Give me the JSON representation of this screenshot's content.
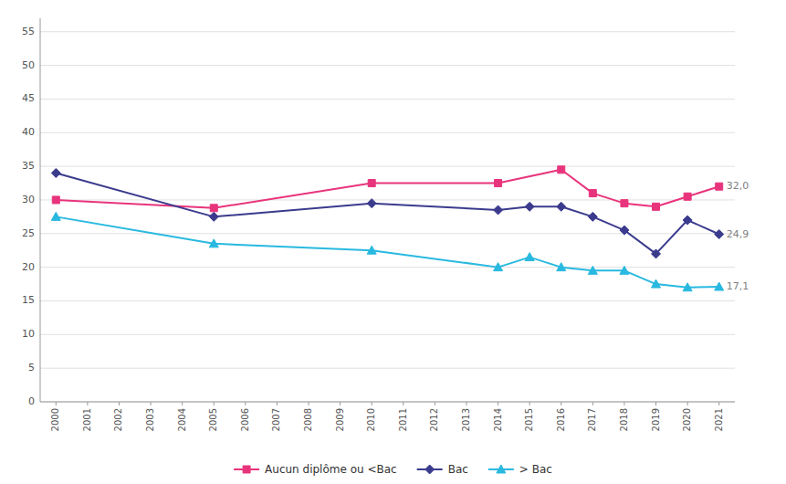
{
  "chart_data": {
    "type": "line",
    "series": [
      {
        "name": "Aucun diplôme ou <Bac",
        "color": "#e8347c",
        "marker": "square",
        "x": [
          2000,
          2005,
          2010,
          2014,
          2016,
          2017,
          2018,
          2019,
          2020,
          2021
        ],
        "values": [
          30.0,
          28.8,
          32.5,
          32.5,
          34.5,
          31.0,
          29.5,
          29.0,
          30.5,
          32.0
        ]
      },
      {
        "name": "Bac",
        "color": "#3b3b8e",
        "marker": "diamond",
        "x": [
          2000,
          2005,
          2010,
          2014,
          2015,
          2016,
          2017,
          2018,
          2019,
          2020,
          2021
        ],
        "values": [
          34.0,
          27.5,
          29.5,
          28.5,
          29.0,
          29.0,
          27.5,
          25.5,
          22.0,
          27.0,
          24.9
        ]
      },
      {
        "name": "> Bac",
        "color": "#29b9e0",
        "marker": "triangle",
        "x": [
          2000,
          2005,
          2010,
          2014,
          2015,
          2016,
          2017,
          2018,
          2019,
          2020,
          2021
        ],
        "values": [
          27.5,
          23.5,
          22.5,
          20.0,
          21.5,
          20.0,
          19.5,
          19.5,
          17.5,
          17.0,
          17.1
        ]
      }
    ],
    "annotations": [
      {
        "x": 2021,
        "y": 32.0,
        "text": "32,0",
        "color": "#808080"
      },
      {
        "x": 2021,
        "y": 24.9,
        "text": "24,9",
        "color": "#808080"
      },
      {
        "x": 2021,
        "y": 17.1,
        "text": "17,1",
        "color": "#808080"
      }
    ],
    "xlim": [
      1999.5,
      2021.5
    ],
    "xticks": [
      2000,
      2001,
      2002,
      2003,
      2004,
      2005,
      2006,
      2007,
      2008,
      2009,
      2010,
      2011,
      2012,
      2013,
      2014,
      2015,
      2016,
      2017,
      2018,
      2019,
      2020,
      2021
    ],
    "ylim": [
      0,
      57
    ],
    "yticks": [
      0,
      5,
      10,
      15,
      20,
      25,
      30,
      35,
      40,
      45,
      50,
      55
    ],
    "grid": "y",
    "legend": "bottom"
  }
}
